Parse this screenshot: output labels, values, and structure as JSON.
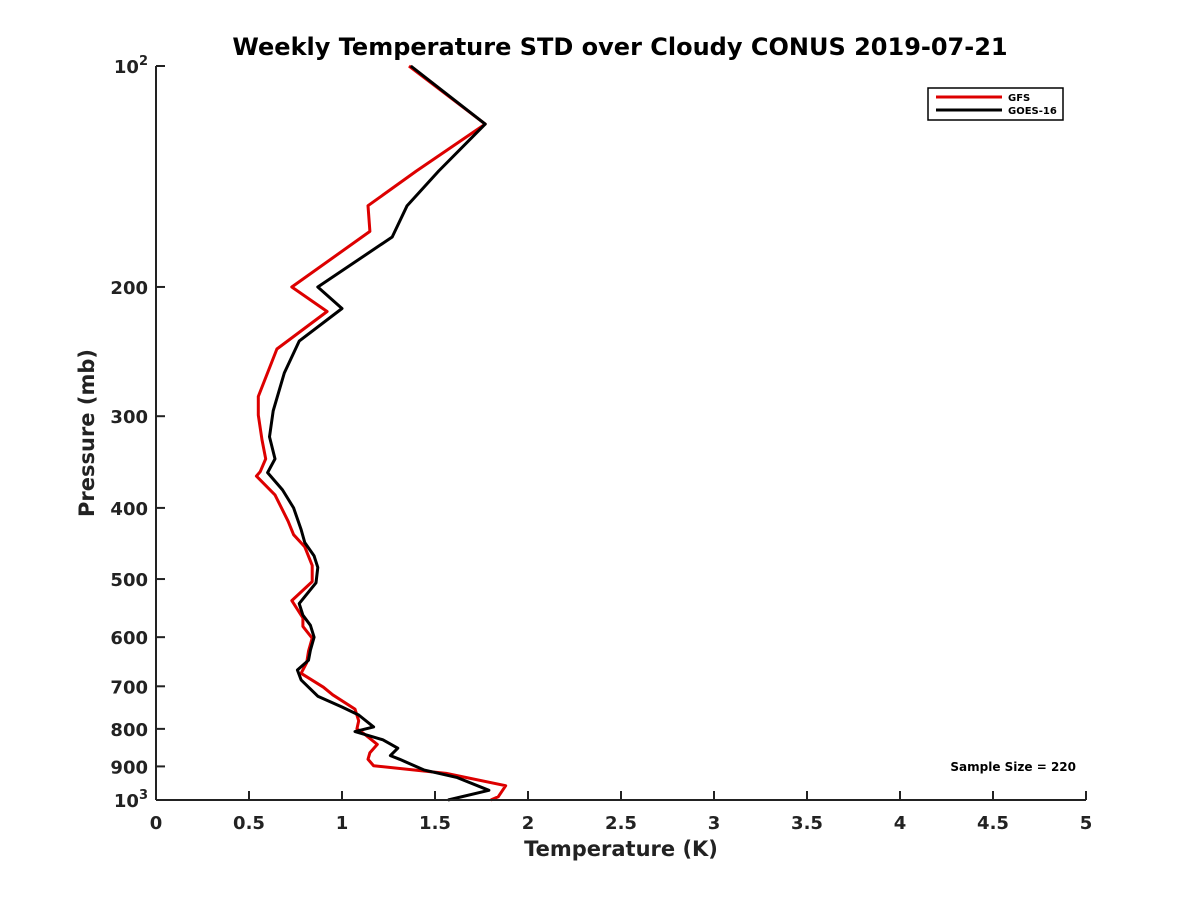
{
  "chart_data": {
    "type": "line",
    "title": "Weekly Temperature STD over Cloudy CONUS 2019-07-21",
    "xlabel": "Temperature (K)",
    "ylabel": "Pressure (mb)",
    "xlim": [
      0,
      5
    ],
    "ylim": [
      100,
      1000
    ],
    "y_scale": "log",
    "y_reversed": true,
    "x_ticks": [
      0,
      0.5,
      1,
      1.5,
      2,
      2.5,
      3,
      3.5,
      4,
      4.5,
      5
    ],
    "x_tick_labels": [
      "0",
      "0.5",
      "1",
      "1.5",
      "2",
      "2.5",
      "3",
      "3.5",
      "4",
      "4.5",
      "5"
    ],
    "y_ticks": [
      100,
      200,
      300,
      400,
      500,
      600,
      700,
      800,
      900,
      1000
    ],
    "y_tick_labels": [
      {
        "text": "10",
        "sup": "2"
      },
      {
        "text": "200"
      },
      {
        "text": "300"
      },
      {
        "text": "400"
      },
      {
        "text": "500"
      },
      {
        "text": "600"
      },
      {
        "text": "700"
      },
      {
        "text": "800"
      },
      {
        "text": "900"
      },
      {
        "text": "10",
        "sup": "3"
      }
    ],
    "legend_position": "top-right",
    "grid": false,
    "annotation": "Sample Size = 220",
    "series": [
      {
        "name": "GFS",
        "color": "#dd0000",
        "points": [
          [
            1.36,
            100
          ],
          [
            1.77,
            120
          ],
          [
            1.4,
            139
          ],
          [
            1.14,
            155
          ],
          [
            1.15,
            168
          ],
          [
            0.73,
            200
          ],
          [
            0.92,
            216
          ],
          [
            0.65,
            243
          ],
          [
            0.55,
            282
          ],
          [
            0.55,
            299
          ],
          [
            0.57,
            323
          ],
          [
            0.59,
            343
          ],
          [
            0.56,
            357
          ],
          [
            0.54,
            362
          ],
          [
            0.64,
            384
          ],
          [
            0.71,
            417
          ],
          [
            0.74,
            435
          ],
          [
            0.8,
            452
          ],
          [
            0.84,
            479
          ],
          [
            0.84,
            504
          ],
          [
            0.73,
            535
          ],
          [
            0.79,
            565
          ],
          [
            0.79,
            580
          ],
          [
            0.84,
            602
          ],
          [
            0.82,
            627
          ],
          [
            0.81,
            650
          ],
          [
            0.78,
            672
          ],
          [
            0.9,
            702
          ],
          [
            0.95,
            719
          ],
          [
            1.07,
            752
          ],
          [
            1.09,
            780
          ],
          [
            1.08,
            800
          ],
          [
            1.12,
            813
          ],
          [
            1.19,
            840
          ],
          [
            1.15,
            862
          ],
          [
            1.14,
            880
          ],
          [
            1.17,
            898
          ],
          [
            1.56,
            920
          ],
          [
            1.88,
            956
          ],
          [
            1.84,
            990
          ],
          [
            1.8,
            1000
          ]
        ]
      },
      {
        "name": "GOES-16",
        "color": "#000000",
        "points": [
          [
            1.37,
            100
          ],
          [
            1.77,
            120
          ],
          [
            1.52,
            139
          ],
          [
            1.35,
            155
          ],
          [
            1.27,
            171
          ],
          [
            0.87,
            200
          ],
          [
            1.0,
            214
          ],
          [
            0.77,
            237
          ],
          [
            0.69,
            262
          ],
          [
            0.63,
            295
          ],
          [
            0.61,
            320
          ],
          [
            0.64,
            343
          ],
          [
            0.6,
            358
          ],
          [
            0.68,
            378
          ],
          [
            0.74,
            400
          ],
          [
            0.78,
            428
          ],
          [
            0.8,
            446
          ],
          [
            0.85,
            465
          ],
          [
            0.87,
            482
          ],
          [
            0.86,
            506
          ],
          [
            0.77,
            540
          ],
          [
            0.79,
            560
          ],
          [
            0.83,
            578
          ],
          [
            0.85,
            600
          ],
          [
            0.83,
            625
          ],
          [
            0.82,
            645
          ],
          [
            0.76,
            665
          ],
          [
            0.78,
            686
          ],
          [
            0.87,
            722
          ],
          [
            1.0,
            747
          ],
          [
            1.09,
            766
          ],
          [
            1.17,
            795
          ],
          [
            1.07,
            807
          ],
          [
            1.22,
            828
          ],
          [
            1.3,
            850
          ],
          [
            1.26,
            870
          ],
          [
            1.31,
            880
          ],
          [
            1.44,
            910
          ],
          [
            1.62,
            932
          ],
          [
            1.79,
            970
          ],
          [
            1.57,
            1000
          ]
        ]
      }
    ]
  }
}
